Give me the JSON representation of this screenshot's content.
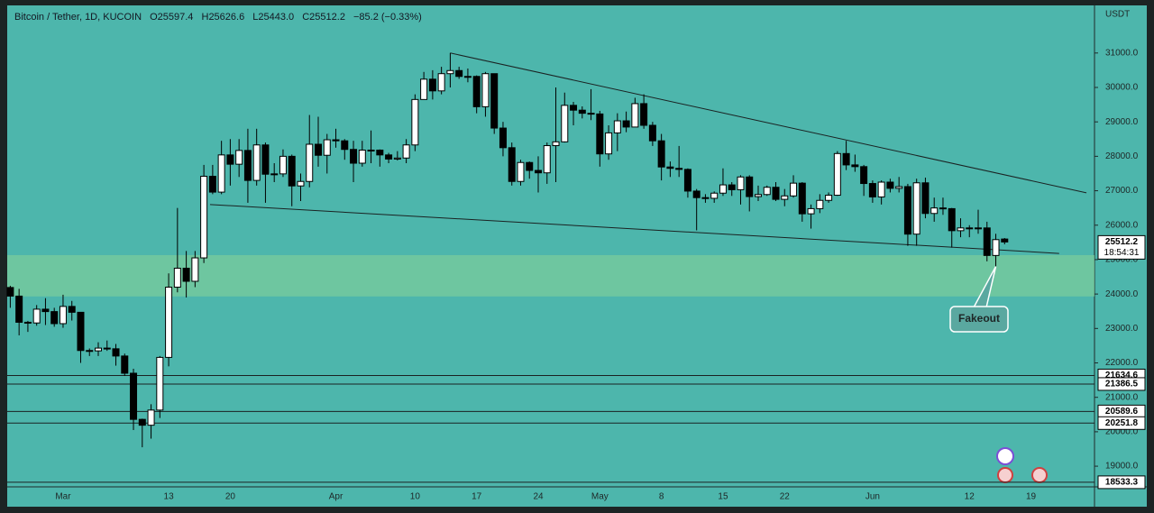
{
  "header": {
    "symbol": "Bitcoin / Tether, 1D, KUCOIN",
    "ohlc": [
      {
        "label": "O",
        "value": "25597.4"
      },
      {
        "label": "H",
        "value": "25626.6"
      },
      {
        "label": "L",
        "value": "25443.0"
      },
      {
        "label": "C",
        "value": "25512.2"
      }
    ],
    "change": "−85.2 (−0.33%)"
  },
  "chart_data": {
    "type": "candlestick",
    "currency": "USDT",
    "categories": [
      null,
      null,
      null,
      null,
      null,
      null,
      "Mar",
      null,
      null,
      null,
      null,
      null,
      null,
      null,
      null,
      null,
      null,
      null,
      "13",
      null,
      null,
      null,
      null,
      null,
      null,
      "20",
      null,
      null,
      null,
      null,
      null,
      null,
      null,
      null,
      null,
      null,
      null,
      "Apr",
      null,
      null,
      null,
      null,
      null,
      null,
      null,
      null,
      "10",
      null,
      null,
      null,
      null,
      null,
      null,
      "17",
      null,
      null,
      null,
      null,
      null,
      null,
      "24",
      null,
      null,
      null,
      null,
      null,
      null,
      "May",
      null,
      null,
      null,
      null,
      null,
      null,
      "8",
      null,
      null,
      null,
      null,
      null,
      null,
      "15",
      null,
      null,
      null,
      null,
      null,
      null,
      "22",
      null,
      null,
      null,
      null,
      null,
      null,
      null,
      null,
      null,
      "Jun",
      null,
      null,
      null,
      null,
      null,
      null,
      null,
      null,
      null,
      null,
      "12",
      null,
      null,
      null,
      null,
      null,
      null,
      "19",
      null,
      null,
      null,
      null,
      null,
      null
    ],
    "open": [
      24190,
      23940,
      23180,
      23160,
      23560,
      23490,
      23140,
      23640,
      23470,
      22360,
      22350,
      22430,
      22410,
      22200,
      21700,
      20360,
      20190,
      20630,
      22160,
      24200,
      24750,
      24370,
      25050,
      27420,
      26960,
      28040,
      27770,
      28170,
      27300,
      28330,
      27480,
      27490,
      28000,
      27140,
      27270,
      28350,
      28030,
      28480,
      28450,
      28200,
      27800,
      28180,
      28180,
      28040,
      27920,
      27950,
      28330,
      29650,
      30240,
      29900,
      30400,
      30490,
      30320,
      30320,
      29440,
      30400,
      28820,
      28250,
      27270,
      27820,
      27590,
      27520,
      28310,
      28420,
      29480,
      29340,
      29250,
      29230,
      28070,
      28680,
      29030,
      28850,
      29530,
      28900,
      28450,
      27690,
      27650,
      27620,
      26990,
      26800,
      26780,
      26930,
      27170,
      27030,
      27400,
      26830,
      26890,
      27100,
      26750,
      26850,
      27220,
      26330,
      26480,
      26720,
      26870,
      28080,
      27750,
      27700,
      27210,
      26820,
      27250,
      27070,
      27120,
      25740,
      27230,
      26340,
      26500,
      26480,
      25840,
      25920,
      25900,
      25920,
      25120,
      25597.4,
      null,
      null,
      null,
      null,
      null,
      null,
      null,
      null,
      null
    ],
    "high": [
      24240,
      24150,
      23220,
      23680,
      23880,
      23600,
      23980,
      23800,
      23480,
      22420,
      22600,
      22650,
      22550,
      22270,
      21830,
      20380,
      20800,
      22200,
      24600,
      26500,
      25250,
      25250,
      27750,
      27750,
      28450,
      28500,
      28500,
      28800,
      28800,
      28400,
      27800,
      28200,
      28050,
      27500,
      29200,
      29150,
      28650,
      28800,
      28500,
      28450,
      28450,
      28750,
      28200,
      28100,
      28150,
      28500,
      29800,
      30450,
      30500,
      30600,
      31000,
      30600,
      30550,
      30350,
      30450,
      30400,
      29000,
      28400,
      27900,
      27850,
      28000,
      28400,
      30000,
      29850,
      29580,
      29450,
      29950,
      29320,
      28900,
      29250,
      29300,
      29700,
      29800,
      29000,
      28650,
      27850,
      28300,
      27650,
      27050,
      26900,
      26980,
      27650,
      27250,
      27450,
      27450,
      27150,
      27150,
      27250,
      27050,
      27450,
      27250,
      26600,
      26900,
      26950,
      28150,
      28450,
      28050,
      27750,
      27300,
      27300,
      27350,
      27400,
      27200,
      27350,
      27380,
      26800,
      26800,
      26500,
      26200,
      26000,
      26450,
      26100,
      25750,
      25626.6,
      null,
      null,
      null,
      null,
      null,
      null,
      null,
      null,
      null
    ],
    "low": [
      23600,
      22800,
      22900,
      23080,
      23100,
      23050,
      23020,
      23230,
      22000,
      22200,
      22200,
      22350,
      21920,
      21620,
      20050,
      19550,
      19800,
      20400,
      21900,
      24050,
      23900,
      24200,
      24900,
      26900,
      26900,
      27150,
      27400,
      26650,
      27150,
      26650,
      27250,
      27400,
      26550,
      26700,
      27100,
      27700,
      27500,
      28250,
      27900,
      27250,
      27700,
      27800,
      27700,
      27800,
      27880,
      27800,
      28150,
      29650,
      29650,
      29800,
      30000,
      30250,
      30150,
      29250,
      29150,
      28650,
      28000,
      27150,
      27150,
      27350,
      26950,
      27200,
      27250,
      28400,
      28900,
      29100,
      29050,
      27700,
      27900,
      28150,
      28700,
      28850,
      28800,
      28300,
      27300,
      27400,
      27400,
      26800,
      25850,
      26650,
      26650,
      26850,
      26850,
      26600,
      26400,
      26700,
      26850,
      26700,
      26550,
      26800,
      26100,
      25900,
      26350,
      26650,
      26850,
      27600,
      27550,
      26850,
      26650,
      26600,
      26950,
      26950,
      25400,
      25400,
      26200,
      26100,
      26300,
      25350,
      25650,
      25650,
      25750,
      24950,
      24800,
      25443,
      null,
      null,
      null,
      null,
      null,
      null,
      null,
      null,
      null
    ],
    "close": [
      23940,
      23180,
      23160,
      23560,
      23490,
      23140,
      23640,
      23470,
      22360,
      22350,
      22430,
      22410,
      22200,
      21700,
      20360,
      20190,
      20630,
      22160,
      24200,
      24750,
      24370,
      25050,
      27420,
      26960,
      28040,
      27770,
      28170,
      27300,
      28330,
      27480,
      27490,
      28000,
      27140,
      27270,
      28350,
      28030,
      28480,
      28450,
      28200,
      27800,
      28180,
      28180,
      28040,
      27920,
      27950,
      28330,
      29650,
      30240,
      29900,
      30400,
      30490,
      30320,
      30320,
      29440,
      30400,
      28820,
      28250,
      27270,
      27820,
      27590,
      27520,
      28310,
      28420,
      29480,
      29340,
      29250,
      29230,
      28070,
      28680,
      29030,
      28850,
      29530,
      28900,
      28450,
      27690,
      27650,
      27620,
      26990,
      26800,
      26780,
      26930,
      27170,
      27030,
      27400,
      26830,
      26890,
      27100,
      26750,
      26850,
      27220,
      26330,
      26480,
      26720,
      26870,
      28080,
      27750,
      27700,
      27210,
      26820,
      27250,
      27070,
      27120,
      25740,
      27230,
      26340,
      26500,
      26480,
      25840,
      25920,
      25900,
      25920,
      25120,
      25580,
      25512.2,
      null,
      null,
      null,
      null,
      null,
      null,
      null,
      null,
      null
    ],
    "up_color": "#ffffff",
    "down_color": "#000000",
    "ylim": [
      18400,
      32330
    ],
    "yticks": [
      {
        "value": 19000,
        "label": "19000.0"
      },
      {
        "value": 20000,
        "label": "20000.0"
      },
      {
        "value": 21000,
        "label": "21000.0"
      },
      {
        "value": 22000,
        "label": "22000.0"
      },
      {
        "value": 23000,
        "label": "23000.0"
      },
      {
        "value": 24000,
        "label": "24000.0"
      },
      {
        "value": 25000,
        "label": "25000.0"
      },
      {
        "value": 26000,
        "label": "26000.0"
      },
      {
        "value": 27000,
        "label": "27000.0"
      },
      {
        "value": 28000,
        "label": "28000.0"
      },
      {
        "value": 29000,
        "label": "29000.0"
      },
      {
        "value": 30000,
        "label": "30000.0"
      },
      {
        "value": 31000,
        "label": "31000.0"
      }
    ],
    "grid": false,
    "zone": [
      23930,
      25130
    ],
    "trendlines": [
      {
        "x": [
          50,
          122.3
        ],
        "y": [
          31000,
          26940
        ]
      },
      {
        "x": [
          22.7,
          119.2
        ],
        "y": [
          26600,
          25180
        ]
      }
    ],
    "levels": [
      21634.6,
      21386.5,
      20589.6,
      20251.8,
      18533.3
    ],
    "last_price": {
      "value": 25512.2,
      "countdown": "18:54:31"
    },
    "annotation": {
      "text": "Fakeout",
      "x": 112,
      "y": 24800
    }
  }
}
